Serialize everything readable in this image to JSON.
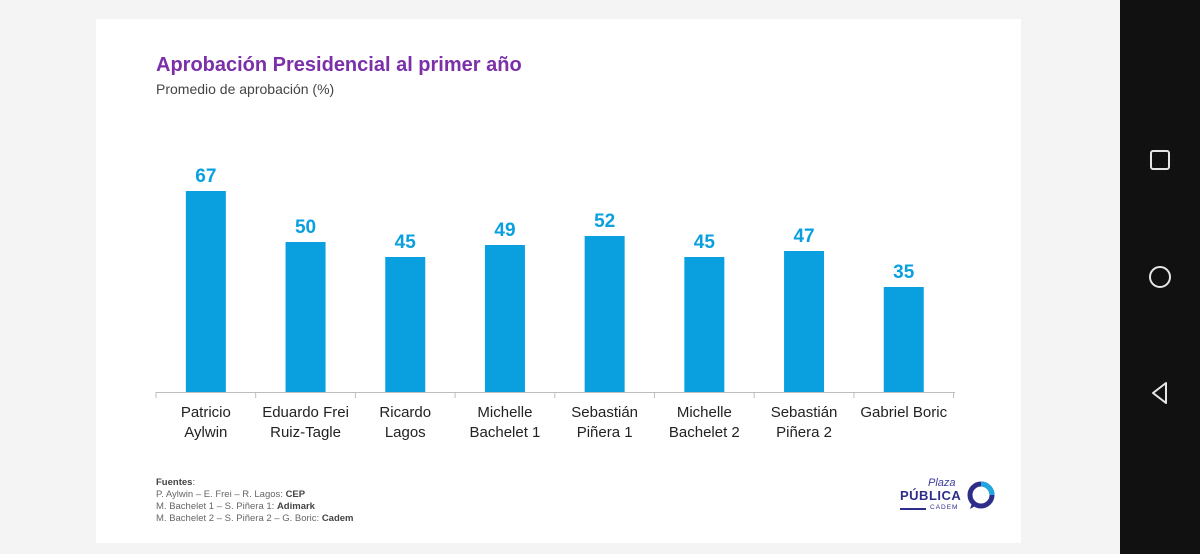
{
  "chart_data": {
    "type": "bar",
    "title": "Aprobación Presidencial al primer año",
    "subtitle": "Promedio de aprobación (%)",
    "categories": [
      [
        "Patricio",
        "Aylwin"
      ],
      [
        "Eduardo Frei",
        "Ruiz-Tagle"
      ],
      [
        "Ricardo",
        "Lagos"
      ],
      [
        "Michelle",
        "Bachelet 1"
      ],
      [
        "Sebastián",
        "Piñera 1"
      ],
      [
        "Michelle",
        "Bachelet 2"
      ],
      [
        "Sebastián",
        "Piñera 2"
      ],
      [
        "Gabriel Boric"
      ]
    ],
    "values": [
      67,
      50,
      45,
      49,
      52,
      45,
      47,
      35
    ],
    "ylim": [
      0,
      70
    ],
    "grid": false,
    "bar_color": "#0aa0e0",
    "label_color": "#0aa0e0"
  },
  "sources": {
    "heading": "Fuentes",
    "lines": [
      {
        "prefix": "P. Aylwin – E. Frei – R. Lagos: ",
        "source": "CEP"
      },
      {
        "prefix": "M. Bachelet 1 – S. Piñera 1: ",
        "source": "Adimark"
      },
      {
        "prefix": "M. Bachelet 2 – S. Piñera 2 – G. Boric: ",
        "source": "Cadem"
      }
    ]
  },
  "logo": {
    "line1": "Plaza",
    "line2": "PÚBLICA",
    "line3": "CADEM"
  },
  "navbar": {
    "icons": [
      "recents-square-icon",
      "home-circle-icon",
      "back-triangle-icon"
    ]
  }
}
